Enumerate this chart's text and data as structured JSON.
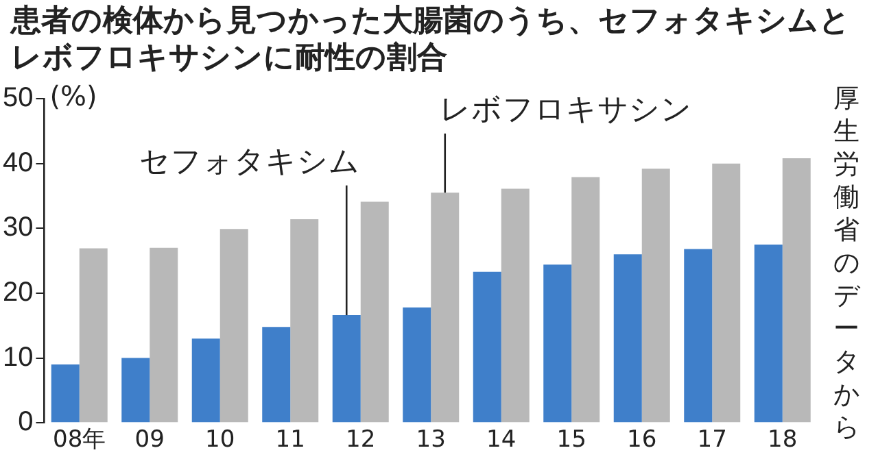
{
  "chart_data": {
    "type": "bar",
    "title": "患者の検体から見つかった大腸菌のうち、セフォタキシムとレボフロキサシンに耐性の割合",
    "ylabel": "(%)",
    "annotations": [
      "厚生労働省のデータから"
    ],
    "categories": [
      "08年",
      "09",
      "10",
      "11",
      "12",
      "13",
      "14",
      "15",
      "16",
      "17",
      "18"
    ],
    "series": [
      {
        "name": "セフォタキシム",
        "color": "#3f7fca",
        "values": [
          9,
          10,
          13,
          14.8,
          16.6,
          17.8,
          23.3,
          24.4,
          26,
          26.8,
          27.5
        ]
      },
      {
        "name": "レボフロキサシン",
        "color": "#b8b8b8",
        "values": [
          26.9,
          27,
          29.9,
          31.4,
          34.1,
          35.5,
          36.1,
          37.9,
          39.2,
          40,
          40.8
        ]
      }
    ],
    "ylim": [
      0,
      50
    ],
    "yticks": [
      0,
      10,
      20,
      30,
      40,
      50
    ],
    "grid": false,
    "legend": false
  }
}
